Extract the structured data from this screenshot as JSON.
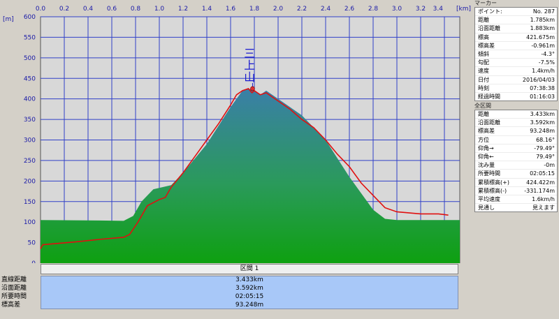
{
  "chart_data": {
    "type": "area",
    "units": {
      "x": "km",
      "y": "m"
    },
    "x_ticks": [
      "0.0",
      "0.2",
      "0.4",
      "0.6",
      "0.8",
      "1.0",
      "1.2",
      "1.4",
      "1.6",
      "1.8",
      "2.0",
      "2.2",
      "2.4",
      "2.6",
      "2.8",
      "3.0",
      "3.2",
      "3.4"
    ],
    "y_ticks": [
      "0",
      "50",
      "100",
      "150",
      "200",
      "250",
      "300",
      "350",
      "400",
      "450",
      "500",
      "550",
      "600"
    ],
    "xlim": [
      0,
      3.433
    ],
    "ylim": [
      0,
      600
    ],
    "annotation": "三上山",
    "series": [
      {
        "name": "terrain",
        "color": "#2a9a3a",
        "x": [
          0,
          0.5,
          0.7,
          0.78,
          0.85,
          0.95,
          1.1,
          1.2,
          1.3,
          1.4,
          1.5,
          1.6,
          1.65,
          1.7,
          1.75,
          1.8,
          1.85,
          1.9,
          2.0,
          2.1,
          2.2,
          2.3,
          2.4,
          2.5,
          2.6,
          2.7,
          2.8,
          2.9,
          3.0,
          3.2,
          3.433
        ],
        "y": [
          105,
          104,
          103,
          115,
          150,
          180,
          190,
          220,
          255,
          290,
          335,
          380,
          400,
          420,
          425,
          420,
          410,
          420,
          400,
          380,
          360,
          330,
          300,
          255,
          210,
          170,
          130,
          108,
          105,
          105,
          105
        ]
      },
      {
        "name": "track",
        "color": "#e01010",
        "x": [
          0,
          0.02,
          0.3,
          0.5,
          0.7,
          0.75,
          0.82,
          0.9,
          1.0,
          1.05,
          1.1,
          1.2,
          1.3,
          1.4,
          1.5,
          1.6,
          1.65,
          1.7,
          1.75,
          1.78,
          1.8,
          1.85,
          1.9,
          2.0,
          2.1,
          2.2,
          2.3,
          2.4,
          2.5,
          2.6,
          2.7,
          2.8,
          2.9,
          3.0,
          3.2,
          3.35,
          3.433
        ],
        "y": [
          35,
          45,
          52,
          58,
          63,
          70,
          100,
          140,
          155,
          160,
          185,
          220,
          260,
          300,
          340,
          385,
          410,
          420,
          425,
          415,
          420,
          410,
          415,
          395,
          375,
          350,
          330,
          300,
          265,
          235,
          195,
          165,
          135,
          125,
          120,
          120,
          117
        ]
      }
    ]
  },
  "chart": {
    "y_unit_label": "[m]",
    "x_unit_label": "[km]"
  },
  "section": {
    "header": "区間 1",
    "labels": [
      "直線距離",
      "沿面距離",
      "所要時間",
      "標高差"
    ],
    "values": [
      "3.433km",
      "3.592km",
      "02:05:15",
      "93.248m"
    ]
  },
  "marker": {
    "title": "マーカー",
    "rows": [
      [
        "ポイント:",
        "No. 287"
      ],
      [
        "距離",
        "1.785km"
      ],
      [
        "沿面距離",
        "1.883km"
      ],
      [
        "標高",
        "421.675m"
      ],
      [
        "標高差",
        "-0.961m"
      ],
      [
        "傾斜",
        "-4.3°"
      ],
      [
        "勾配",
        "-7.5%"
      ],
      [
        "速度",
        "1.4km/h"
      ],
      [
        "日付",
        "2016/04/03"
      ],
      [
        "時刻",
        "07:38:38"
      ],
      [
        "経過時間",
        "01:16:03"
      ]
    ]
  },
  "total": {
    "title": "全区間",
    "rows": [
      [
        "距離",
        "3.433km"
      ],
      [
        "沿面距離",
        "3.592km"
      ],
      [
        "標高差",
        "93.248m"
      ],
      [
        "方位",
        "68.16°"
      ],
      [
        "仰角→",
        "-79.49°"
      ],
      [
        "仰角←",
        "79.49°"
      ],
      [
        "沈み量",
        "-0m"
      ],
      [
        "所要時間",
        "02:05:15"
      ],
      [
        "累積標高(+)",
        "424.422m"
      ],
      [
        "累積標高(-)",
        "-331.174m"
      ],
      [
        "平均速度",
        "1.6km/h"
      ],
      [
        "見通し",
        "見えます"
      ]
    ]
  }
}
